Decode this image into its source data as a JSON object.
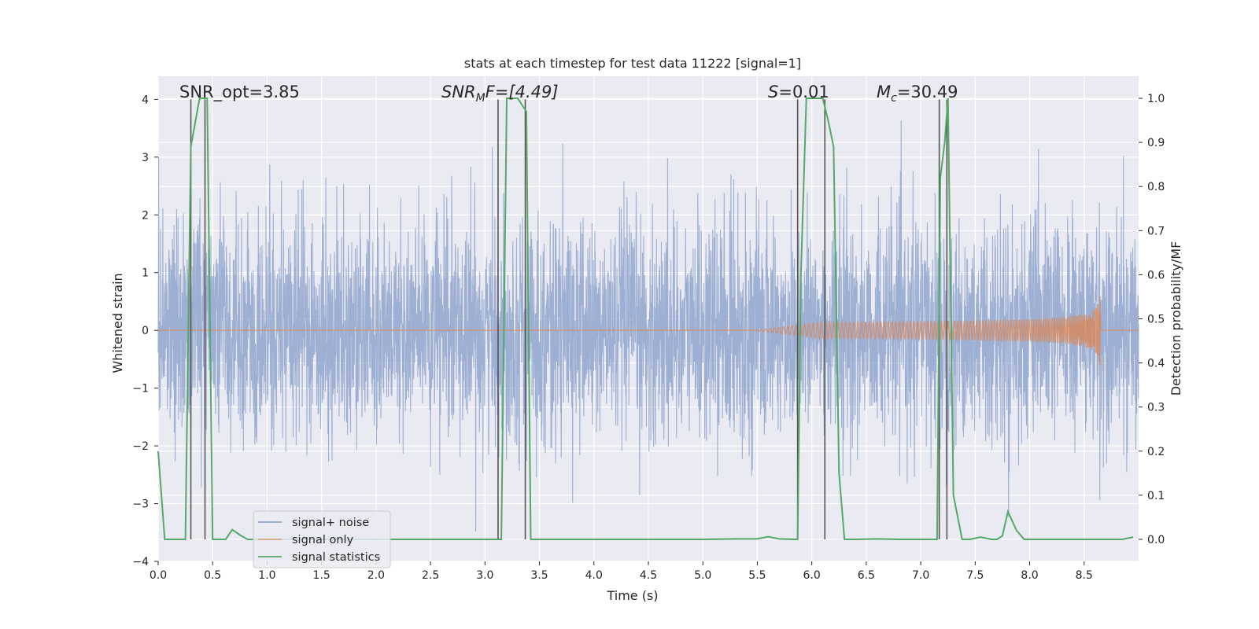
{
  "chart_data": {
    "type": "line",
    "title": "stats at each timestep for test data 11222 [signal=1]",
    "xlabel": "Time (s)",
    "ylabel_left": "Whitened strain",
    "ylabel_right": "Detection probability/MF",
    "xlim": [
      0.0,
      9.0
    ],
    "ylim_left": [
      -4.0,
      4.4
    ],
    "ylim_right": [
      -0.05,
      1.05
    ],
    "x_ticks": [
      0.0,
      0.5,
      1.0,
      1.5,
      2.0,
      2.5,
      3.0,
      3.5,
      4.0,
      4.5,
      5.0,
      5.5,
      6.0,
      6.5,
      7.0,
      7.5,
      8.0,
      8.5
    ],
    "x_tick_labels": [
      "0.0",
      "0.5",
      "1.0",
      "1.5",
      "2.0",
      "2.5",
      "3.0",
      "3.5",
      "4.0",
      "4.5",
      "5.0",
      "5.5",
      "6.0",
      "6.5",
      "7.0",
      "7.5",
      "8.0",
      "8.5"
    ],
    "y_left_ticks": [
      -4,
      -3,
      -2,
      -1,
      0,
      1,
      2,
      3,
      4
    ],
    "y_left_tick_labels": [
      "−4",
      "−3",
      "−2",
      "−1",
      "0",
      "1",
      "2",
      "3",
      "4"
    ],
    "y_right_ticks": [
      0.0,
      0.1,
      0.2,
      0.3,
      0.4,
      0.5,
      0.6,
      0.7,
      0.8,
      0.9,
      1.0
    ],
    "y_right_tick_labels": [
      "0.0",
      "0.1",
      "0.2",
      "0.3",
      "0.4",
      "0.5",
      "0.6",
      "0.7",
      "0.8",
      "0.9",
      "1.0"
    ],
    "grid": true,
    "legend_position": "lower-left",
    "annotations": {
      "snr_opt": "SNR_opt=3.85",
      "snr_mf_main": "SNR",
      "snr_mf_sub": "M",
      "snr_mf_rest": "F=[4.49]",
      "s_main": "S",
      "s_rest": "=0.01",
      "mc_main": "M",
      "mc_sub": "c",
      "mc_rest": "=30.49"
    },
    "series": [
      {
        "name": "signal+ noise",
        "axis": "left",
        "color": "#8fa4cc",
        "description_values": {
          "t_start": 0.0,
          "t_end": 9.0,
          "typical_abs_amplitude": 1.5,
          "max_abs_amplitude": 3.7
        }
      },
      {
        "name": "signal only",
        "axis": "left",
        "color": "#dd8452",
        "chirp": {
          "t_visible_start": 5.5,
          "t_merger": 8.65,
          "peak_amplitude": 0.72
        }
      },
      {
        "name": "signal statistics",
        "axis": "right",
        "color": "#55a868",
        "x": [
          0.0,
          0.06,
          0.2,
          0.25,
          0.3,
          0.38,
          0.45,
          0.5,
          0.62,
          0.68,
          0.75,
          0.82,
          0.9,
          1.5,
          2.0,
          2.5,
          3.0,
          3.1,
          3.15,
          3.2,
          3.3,
          3.38,
          3.42,
          3.5,
          4.0,
          4.5,
          5.0,
          5.3,
          5.5,
          5.6,
          5.7,
          5.85,
          5.87,
          5.88,
          5.9,
          5.95,
          6.1,
          6.15,
          6.2,
          6.25,
          6.3,
          6.35,
          6.4,
          6.6,
          6.8,
          7.0,
          7.15,
          7.18,
          7.22,
          7.25,
          7.3,
          7.38,
          7.45,
          7.55,
          7.65,
          7.7,
          7.75,
          7.8,
          7.88,
          7.95,
          8.0,
          8.5,
          8.7,
          8.85,
          8.95
        ],
        "y": [
          0.2,
          0.0,
          0.0,
          0.0,
          0.89,
          1.0,
          1.0,
          0.0,
          0.0,
          0.022,
          0.01,
          0.0,
          0.0,
          0.0,
          0.0,
          0.0,
          0.0,
          0.0,
          0.0,
          1.0,
          1.0,
          0.97,
          0.0,
          0.0,
          0.0,
          0.0,
          0.0,
          0.001,
          0.001,
          0.006,
          0.001,
          0.0,
          0.0,
          0.2,
          0.6,
          1.0,
          1.0,
          0.95,
          0.89,
          0.15,
          0.0,
          0.0,
          0.0,
          0.001,
          0.0,
          0.0,
          0.0,
          0.82,
          0.9,
          1.0,
          0.1,
          0.0,
          0.0,
          0.005,
          0.0,
          0.0,
          0.008,
          0.063,
          0.02,
          0.0,
          0.0,
          0.0,
          0.0,
          0.0,
          0.005
        ]
      }
    ],
    "vertical_markers_x": [
      0.3,
      0.43,
      3.12,
      3.37,
      5.87,
      6.12,
      7.17,
      7.24
    ]
  }
}
